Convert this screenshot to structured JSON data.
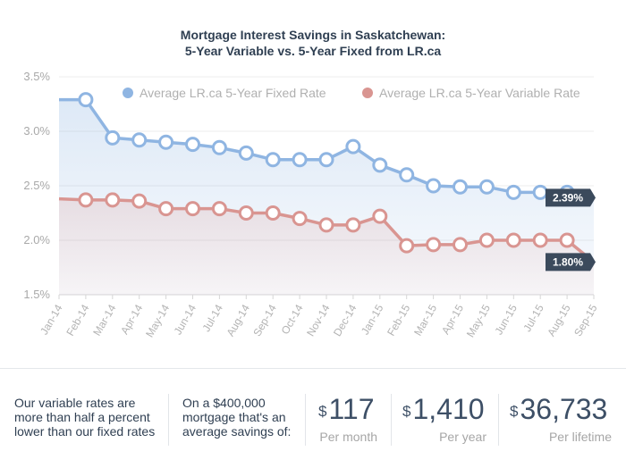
{
  "chart_data": {
    "type": "line",
    "title": "Mortgage Interest Savings in Saskatchewan:",
    "subtitle": "5-Year Variable vs. 5-Year Fixed from LR.ca",
    "categories": [
      "Jan-14",
      "Feb-14",
      "Mar-14",
      "Apr-14",
      "May-14",
      "Jun-14",
      "Jul-14",
      "Aug-14",
      "Sep-14",
      "Oct-14",
      "Nov-14",
      "Dec-14",
      "Jan-15",
      "Feb-15",
      "Mar-15",
      "Apr-15",
      "May-15",
      "Jun-15",
      "Jul-15",
      "Aug-15",
      "Sep-15"
    ],
    "yticks": [
      "3.5%",
      "3.0%",
      "2.5%",
      "2.0%",
      "1.5%"
    ],
    "ylim": [
      1.5,
      3.5
    ],
    "series": [
      {
        "name": "Average LR.ca 5-Year Fixed Rate",
        "color": "#8fb5e2",
        "values": [
          3.29,
          3.29,
          2.94,
          2.92,
          2.9,
          2.88,
          2.85,
          2.8,
          2.74,
          2.74,
          2.74,
          2.86,
          2.69,
          2.6,
          2.5,
          2.49,
          2.49,
          2.44,
          2.44,
          2.44,
          2.39
        ]
      },
      {
        "name": "Average LR.ca 5-Year Variable Rate",
        "color": "#d99591",
        "values": [
          2.38,
          2.37,
          2.37,
          2.36,
          2.29,
          2.29,
          2.29,
          2.25,
          2.25,
          2.2,
          2.14,
          2.14,
          2.22,
          1.95,
          1.96,
          1.96,
          2.0,
          2.0,
          2.0,
          2.0,
          1.8
        ]
      }
    ],
    "callouts": [
      "2.39%",
      "1.80%"
    ],
    "legend": "top",
    "grid": true
  },
  "stats": {
    "text1": "Our variable rates are more than half a percent lower than our fixed rates",
    "text2": "On a $400,000 mortgage that's an average savings of:",
    "currency": "$",
    "month_value": "117",
    "month_label": "Per month",
    "year_value": "1,410",
    "year_label": "Per year",
    "lifetime_value": "36,733",
    "lifetime_label": "Per lifetime"
  }
}
